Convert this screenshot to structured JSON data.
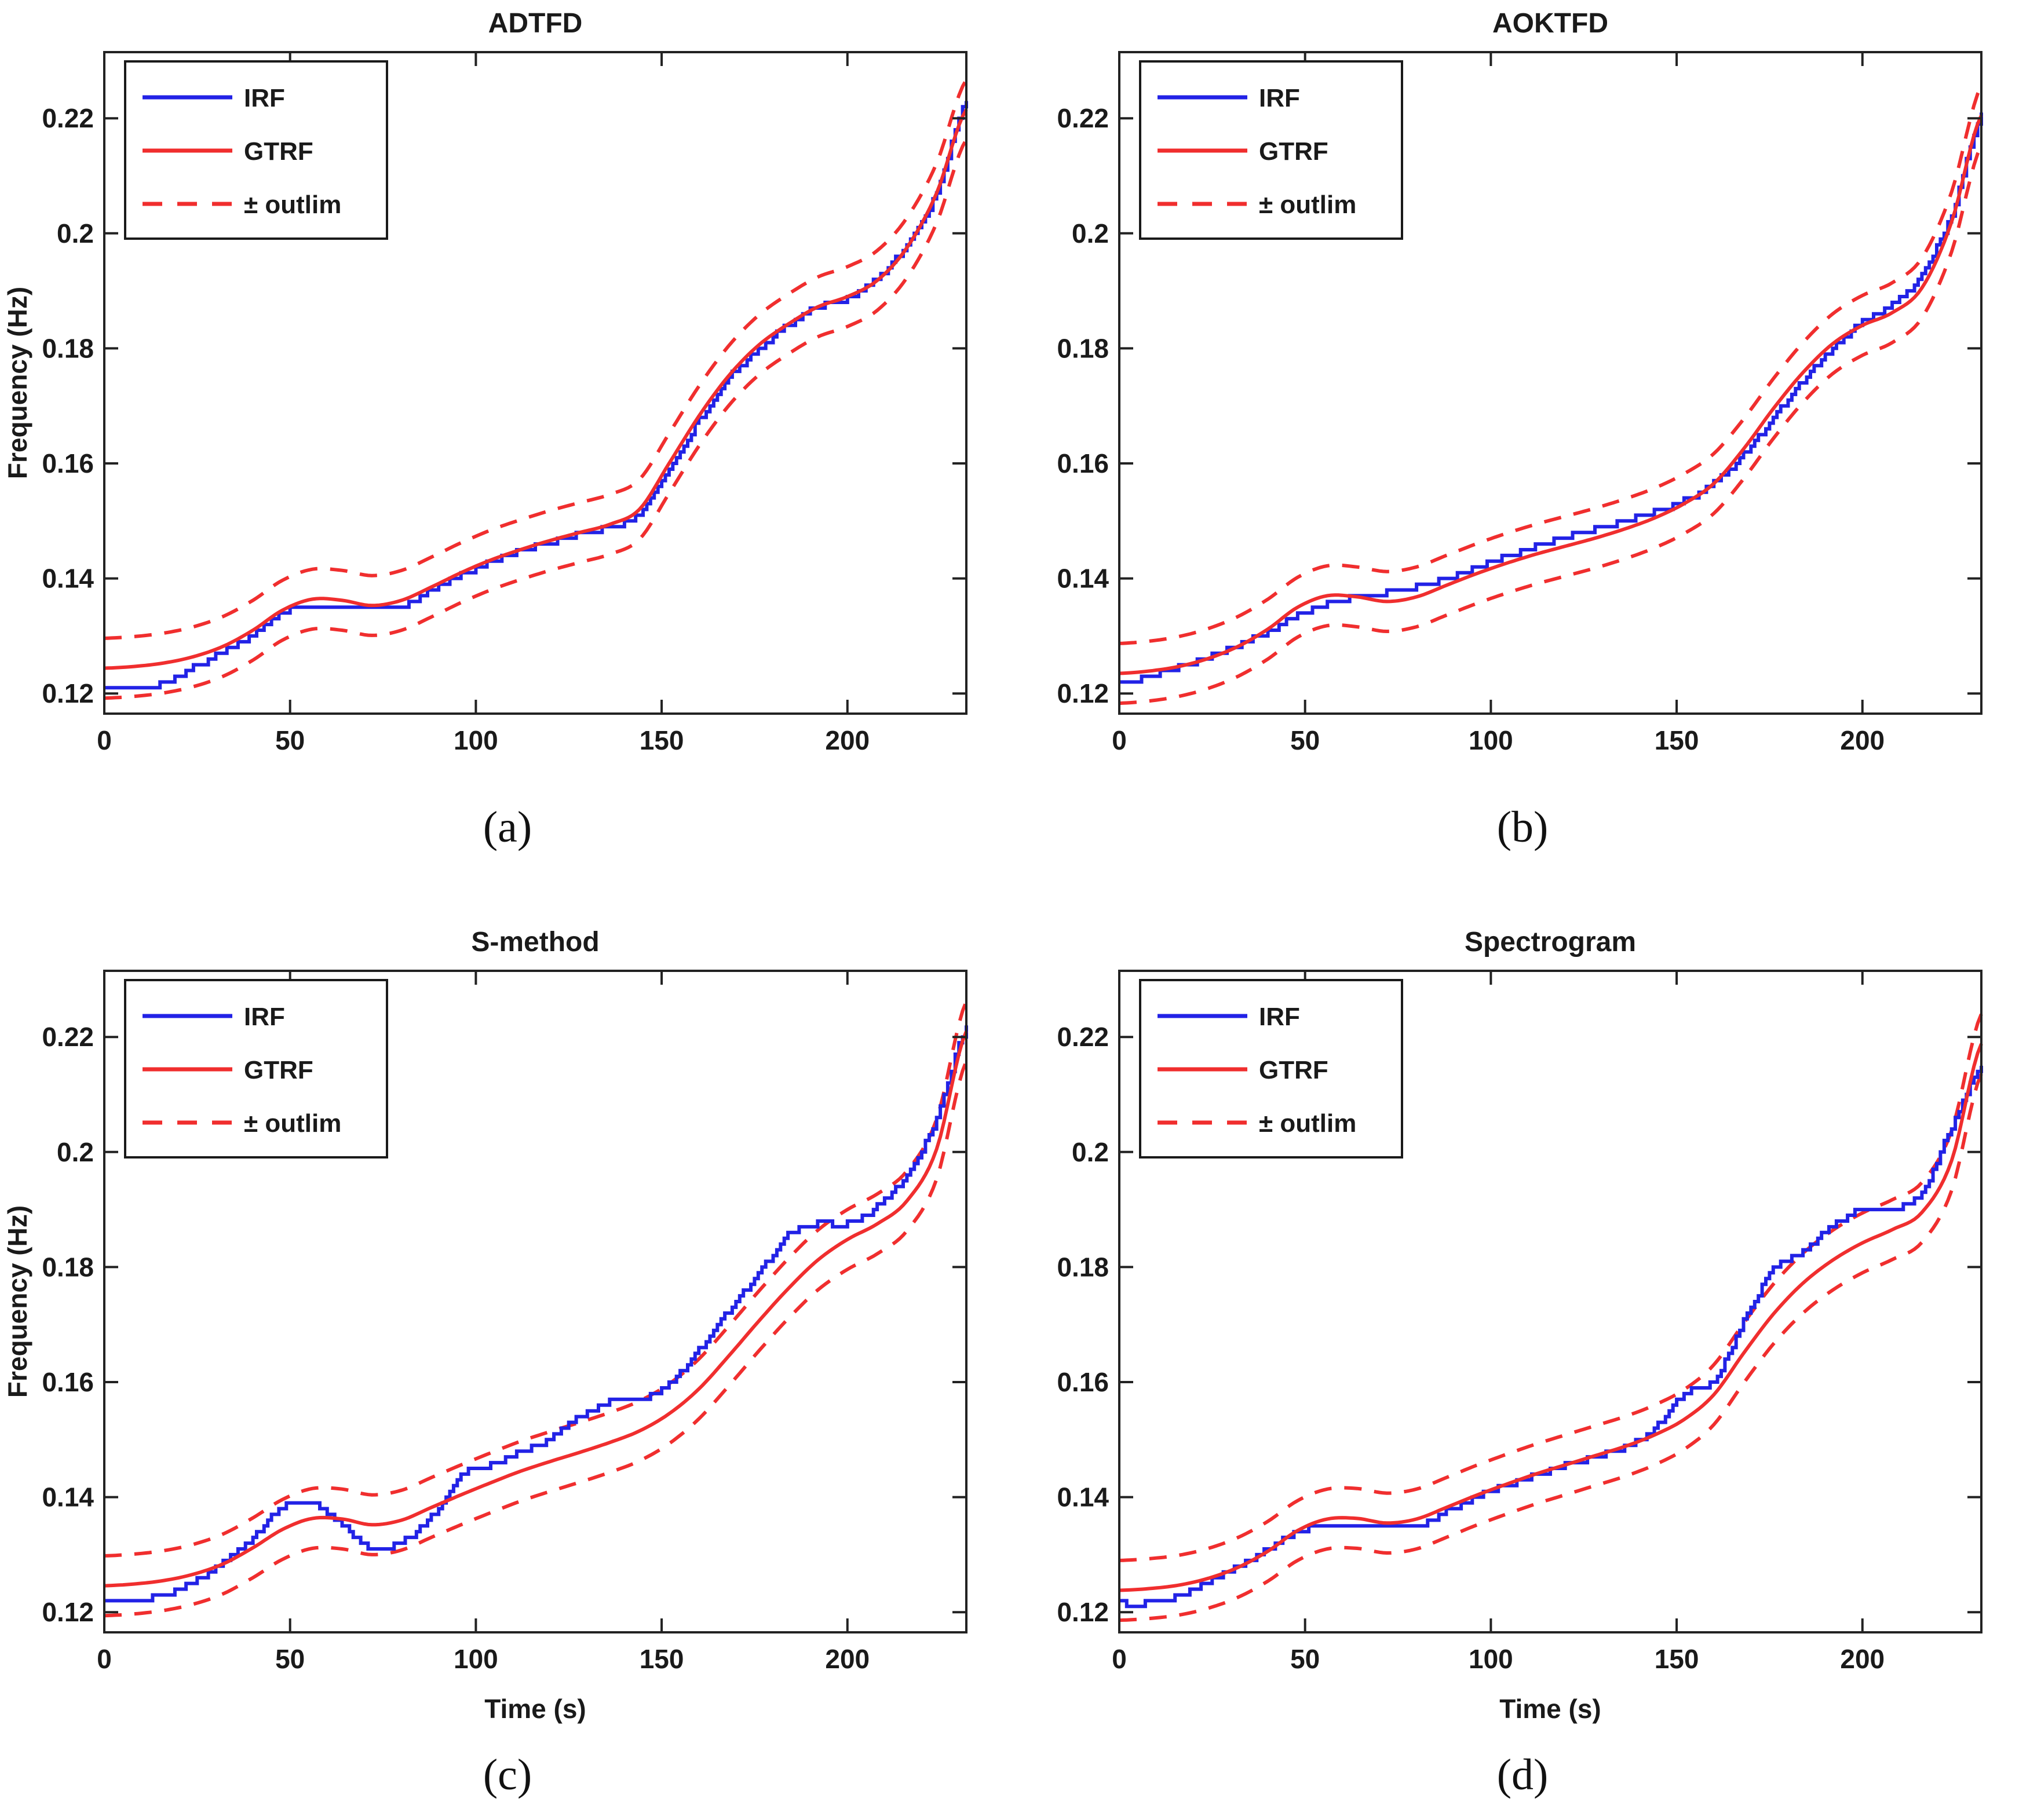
{
  "figure": {
    "background": "#ffffff",
    "rows": 2,
    "cols": 2
  },
  "chart_data": {
    "type": "line",
    "xlabel": "Time (s)",
    "ylabel": "Frequency (Hz)",
    "xlim": [
      0,
      232
    ],
    "ylim": [
      0.1165,
      0.2315
    ],
    "x_ticks": [
      0,
      50,
      100,
      150,
      200
    ],
    "x_tick_labels": [
      "0",
      "50",
      "100",
      "150",
      "200"
    ],
    "y_ticks": [
      0.12,
      0.14,
      0.16,
      0.18,
      0.2,
      0.22
    ],
    "y_tick_labels": [
      "0.12",
      "0.14",
      "0.16",
      "0.18",
      "0.2",
      "0.22"
    ],
    "grid": false,
    "t_step": 8,
    "irf_quantum_hz": 0.001,
    "outlim_offset": 0.0052,
    "colors": {
      "irf": "#2222e6",
      "gtrf": "#f02e2e",
      "axis": "#222222",
      "text": "#1a1a1a"
    },
    "legend": {
      "position": "top-left",
      "entries": [
        {
          "label": "IRF",
          "style": "solid",
          "color_key": "irf"
        },
        {
          "label": "GTRF",
          "style": "solid",
          "color_key": "gtrf"
        },
        {
          "label": "± outlim",
          "style": "dashed",
          "color_key": "gtrf"
        }
      ]
    },
    "plots": [
      {
        "title": "ADTFD",
        "caption": "(a)",
        "show_ylabel": true,
        "show_xlabel": false,
        "series": {
          "IRF": [
            0.1206,
            0.1208,
            0.1218,
            0.1245,
            0.1272,
            0.1302,
            0.134,
            0.1352,
            0.1352,
            0.1346,
            0.1352,
            0.138,
            0.1405,
            0.1428,
            0.1448,
            0.1462,
            0.1478,
            0.149,
            0.1512,
            0.1592,
            0.1675,
            0.1748,
            0.1798,
            0.184,
            0.1872,
            0.1886,
            0.1922,
            0.1982,
            0.2072,
            0.2232
          ],
          "GTRF": [
            0.1244,
            0.1247,
            0.1253,
            0.1264,
            0.1282,
            0.131,
            0.1345,
            0.1364,
            0.1362,
            0.1353,
            0.1362,
            0.1385,
            0.141,
            0.1432,
            0.145,
            0.1466,
            0.148,
            0.1494,
            0.152,
            0.16,
            0.1682,
            0.1752,
            0.1805,
            0.1842,
            0.1872,
            0.189,
            0.1918,
            0.1975,
            0.207,
            0.2215
          ]
        }
      },
      {
        "title": "AOKTFD",
        "caption": "(b)",
        "show_ylabel": false,
        "show_xlabel": false,
        "series": {
          "IRF": [
            0.1218,
            0.123,
            0.1246,
            0.1264,
            0.1284,
            0.1308,
            0.1336,
            0.1356,
            0.1368,
            0.1376,
            0.1386,
            0.14,
            0.1418,
            0.1438,
            0.1456,
            0.1472,
            0.1486,
            0.15,
            0.1515,
            0.1535,
            0.1565,
            0.1615,
            0.168,
            0.1745,
            0.18,
            0.1845,
            0.1875,
            0.193,
            0.2035,
            0.2205
          ],
          "GTRF": [
            0.1235,
            0.1239,
            0.1247,
            0.1261,
            0.1282,
            0.1312,
            0.135,
            0.137,
            0.1368,
            0.136,
            0.1368,
            0.1388,
            0.1408,
            0.1426,
            0.1442,
            0.1456,
            0.147,
            0.1486,
            0.1505,
            0.153,
            0.1565,
            0.1625,
            0.1695,
            0.1758,
            0.1808,
            0.184,
            0.1862,
            0.1905,
            0.202,
            0.2205
          ]
        }
      },
      {
        "title": "S-method",
        "caption": "(c)",
        "show_ylabel": true,
        "show_xlabel": true,
        "series": {
          "IRF": [
            0.1222,
            0.1222,
            0.123,
            0.1252,
            0.1285,
            0.133,
            0.1382,
            0.139,
            0.1352,
            0.131,
            0.1322,
            0.1365,
            0.144,
            0.1455,
            0.1478,
            0.1502,
            0.154,
            0.1565,
            0.1568,
            0.1598,
            0.1655,
            0.1725,
            0.1788,
            0.1855,
            0.1875,
            0.1875,
            0.1905,
            0.1962,
            0.206,
            0.2215
          ],
          "GTRF": [
            0.1246,
            0.1249,
            0.1255,
            0.1266,
            0.1284,
            0.1312,
            0.1344,
            0.1363,
            0.1362,
            0.1352,
            0.136,
            0.1382,
            0.1404,
            0.1425,
            0.1445,
            0.1462,
            0.1478,
            0.1495,
            0.1515,
            0.1545,
            0.1588,
            0.1645,
            0.1705,
            0.1762,
            0.1812,
            0.1848,
            0.1875,
            0.1915,
            0.2005,
            0.221
          ]
        }
      },
      {
        "title": "Spectrogram",
        "caption": "(d)",
        "show_ylabel": false,
        "show_xlabel": true,
        "series": {
          "IRF": [
            0.1215,
            0.1216,
            0.1228,
            0.1252,
            0.128,
            0.131,
            0.134,
            0.135,
            0.135,
            0.135,
            0.135,
            0.1375,
            0.14,
            0.142,
            0.1438,
            0.1455,
            0.147,
            0.1487,
            0.152,
            0.158,
            0.1602,
            0.1705,
            0.1795,
            0.1828,
            0.1872,
            0.19,
            0.19,
            0.1932,
            0.2045,
            0.215
          ],
          "GTRF": [
            0.1238,
            0.1241,
            0.1247,
            0.1259,
            0.1278,
            0.1306,
            0.1342,
            0.1362,
            0.1363,
            0.1355,
            0.1362,
            0.1382,
            0.1403,
            0.1422,
            0.144,
            0.1456,
            0.1472,
            0.1488,
            0.1508,
            0.1535,
            0.1578,
            0.165,
            0.1718,
            0.1772,
            0.1812,
            0.1842,
            0.1865,
            0.1895,
            0.1985,
            0.2188
          ]
        }
      }
    ]
  }
}
